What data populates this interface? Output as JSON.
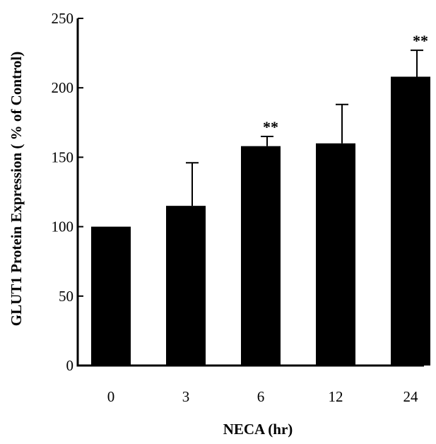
{
  "chart_data": {
    "type": "bar",
    "xlabel": "NECA (hr)",
    "ylabel": "GLUT1 Protein Expression ( % of Control)",
    "categories": [
      "0",
      "3",
      "6",
      "12",
      "24"
    ],
    "values": [
      100,
      115,
      158,
      160,
      208
    ],
    "error_upper": [
      0,
      31,
      7,
      28,
      19
    ],
    "annotations": [
      "",
      "",
      "**",
      "",
      "**"
    ],
    "ylim": [
      0,
      250
    ],
    "yticks": [
      0,
      50,
      100,
      150,
      200,
      250
    ],
    "grid": false,
    "bar_color": "#000000"
  }
}
